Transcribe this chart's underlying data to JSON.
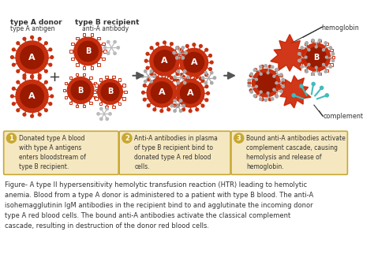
{
  "bg_color": "#ffffff",
  "cell_red": "#c83010",
  "cell_dark": "#9a1a00",
  "cell_light": "#e04020",
  "ab_color": "#aaaaaa",
  "ab_color2": "#bbbbbb",
  "box_color": "#f5e8c0",
  "box_edge": "#c8a832",
  "num_color": "#c8a832",
  "text_color": "#333333",
  "arrow_color": "#555555",
  "complement_color": "#44bbbb",
  "hemoglobin_color": "#cc2200",
  "header1": "type A donor",
  "header2": "type B recipient",
  "sub1": "type A antigen",
  "sub2": "anti-A antibody",
  "hemo_label": "hemoglobin",
  "comp_label": "complement",
  "label1": "Donated type A blood\nwith type A antigens\nenters bloodstream of\ntype B recipient.",
  "label2": "Anti-A antibodies in plasma\nof type B recipient bind to\ndonated type A red blood\ncells.",
  "label3": "Bound anti-A antibodies activate\ncomplement cascade, causing\nhemolysis and release of\nhemoglobin.",
  "caption": "Figure- A type II hypersensitivity hemolytic transfusion reaction (HTR) leading to hemolytic\nanemia. Blood from a type A donor is administered to a patient with type B blood. The anti-A\nisohemagglutinin IgM antibodies in the recipient bind to and agglutinate the incoming donor\ntype A red blood cells. The bound anti-A antibodies activate the classical complement\ncascade, resulting in destruction of the donor red blood cells."
}
